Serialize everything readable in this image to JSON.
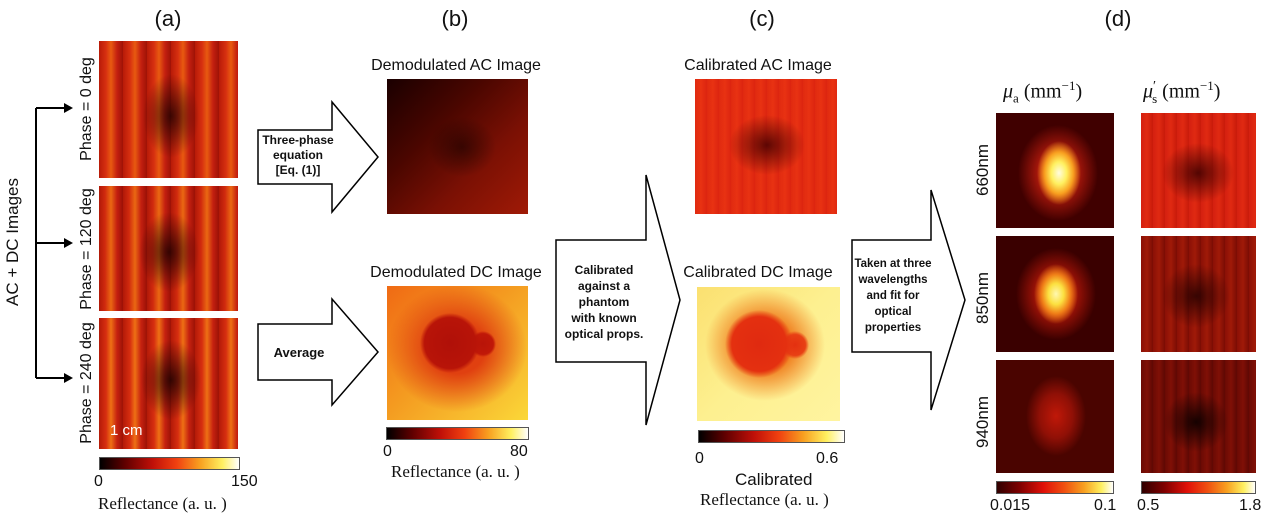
{
  "panels": {
    "a": "(a)",
    "b": "(b)",
    "c": "(c)",
    "d": "(d)"
  },
  "panel_a": {
    "side_label": "AC + DC Images",
    "phases": [
      "Phase = 0 deg",
      "Phase = 120 deg",
      "Phase = 240 deg"
    ],
    "scale_bar": "1 cm",
    "colorbar": {
      "min": "0",
      "max": "150",
      "label": "Reflectance (a. u. )"
    }
  },
  "arrows": {
    "three_phase": [
      "Three-phase",
      "equation",
      "[Eq. (1)]"
    ],
    "average": "Average",
    "calibrated": [
      "Calibrated",
      "against a",
      "phantom",
      "with known",
      "optical props."
    ],
    "taken": [
      "Taken at three",
      "wavelengths",
      "and fit for",
      "optical",
      "properties"
    ]
  },
  "panel_b": {
    "ac_title": "Demodulated AC Image",
    "dc_title": "Demodulated DC Image",
    "colorbar": {
      "min": "0",
      "max": "80",
      "label": "Reflectance (a. u. )"
    }
  },
  "panel_c": {
    "ac_title": "Calibrated AC Image",
    "dc_title": "Calibrated DC Image",
    "colorbar": {
      "min": "0",
      "max": "0.6",
      "label1": "Calibrated",
      "label2": "Reflectance (a. u. )"
    }
  },
  "panel_d": {
    "mua_symbol": "μ",
    "mua_sub": "a",
    "mus_symbol": "μ",
    "mus_prime": "′",
    "mus_sub": "s",
    "unit_base": "(mm",
    "unit_exp": "−1",
    "unit_close": ")",
    "wavelengths": [
      "660nm",
      "850nm",
      "940nm"
    ],
    "cbar_mua": {
      "min": "0.015",
      "max": "0.1"
    },
    "cbar_mus": {
      "min": "0.5",
      "max": "1.8"
    }
  },
  "colors": {
    "hot_dark": "#1a0000",
    "hot_red": "#d42010",
    "hot_orange": "#f07010",
    "hot_yellow": "#fff080"
  }
}
